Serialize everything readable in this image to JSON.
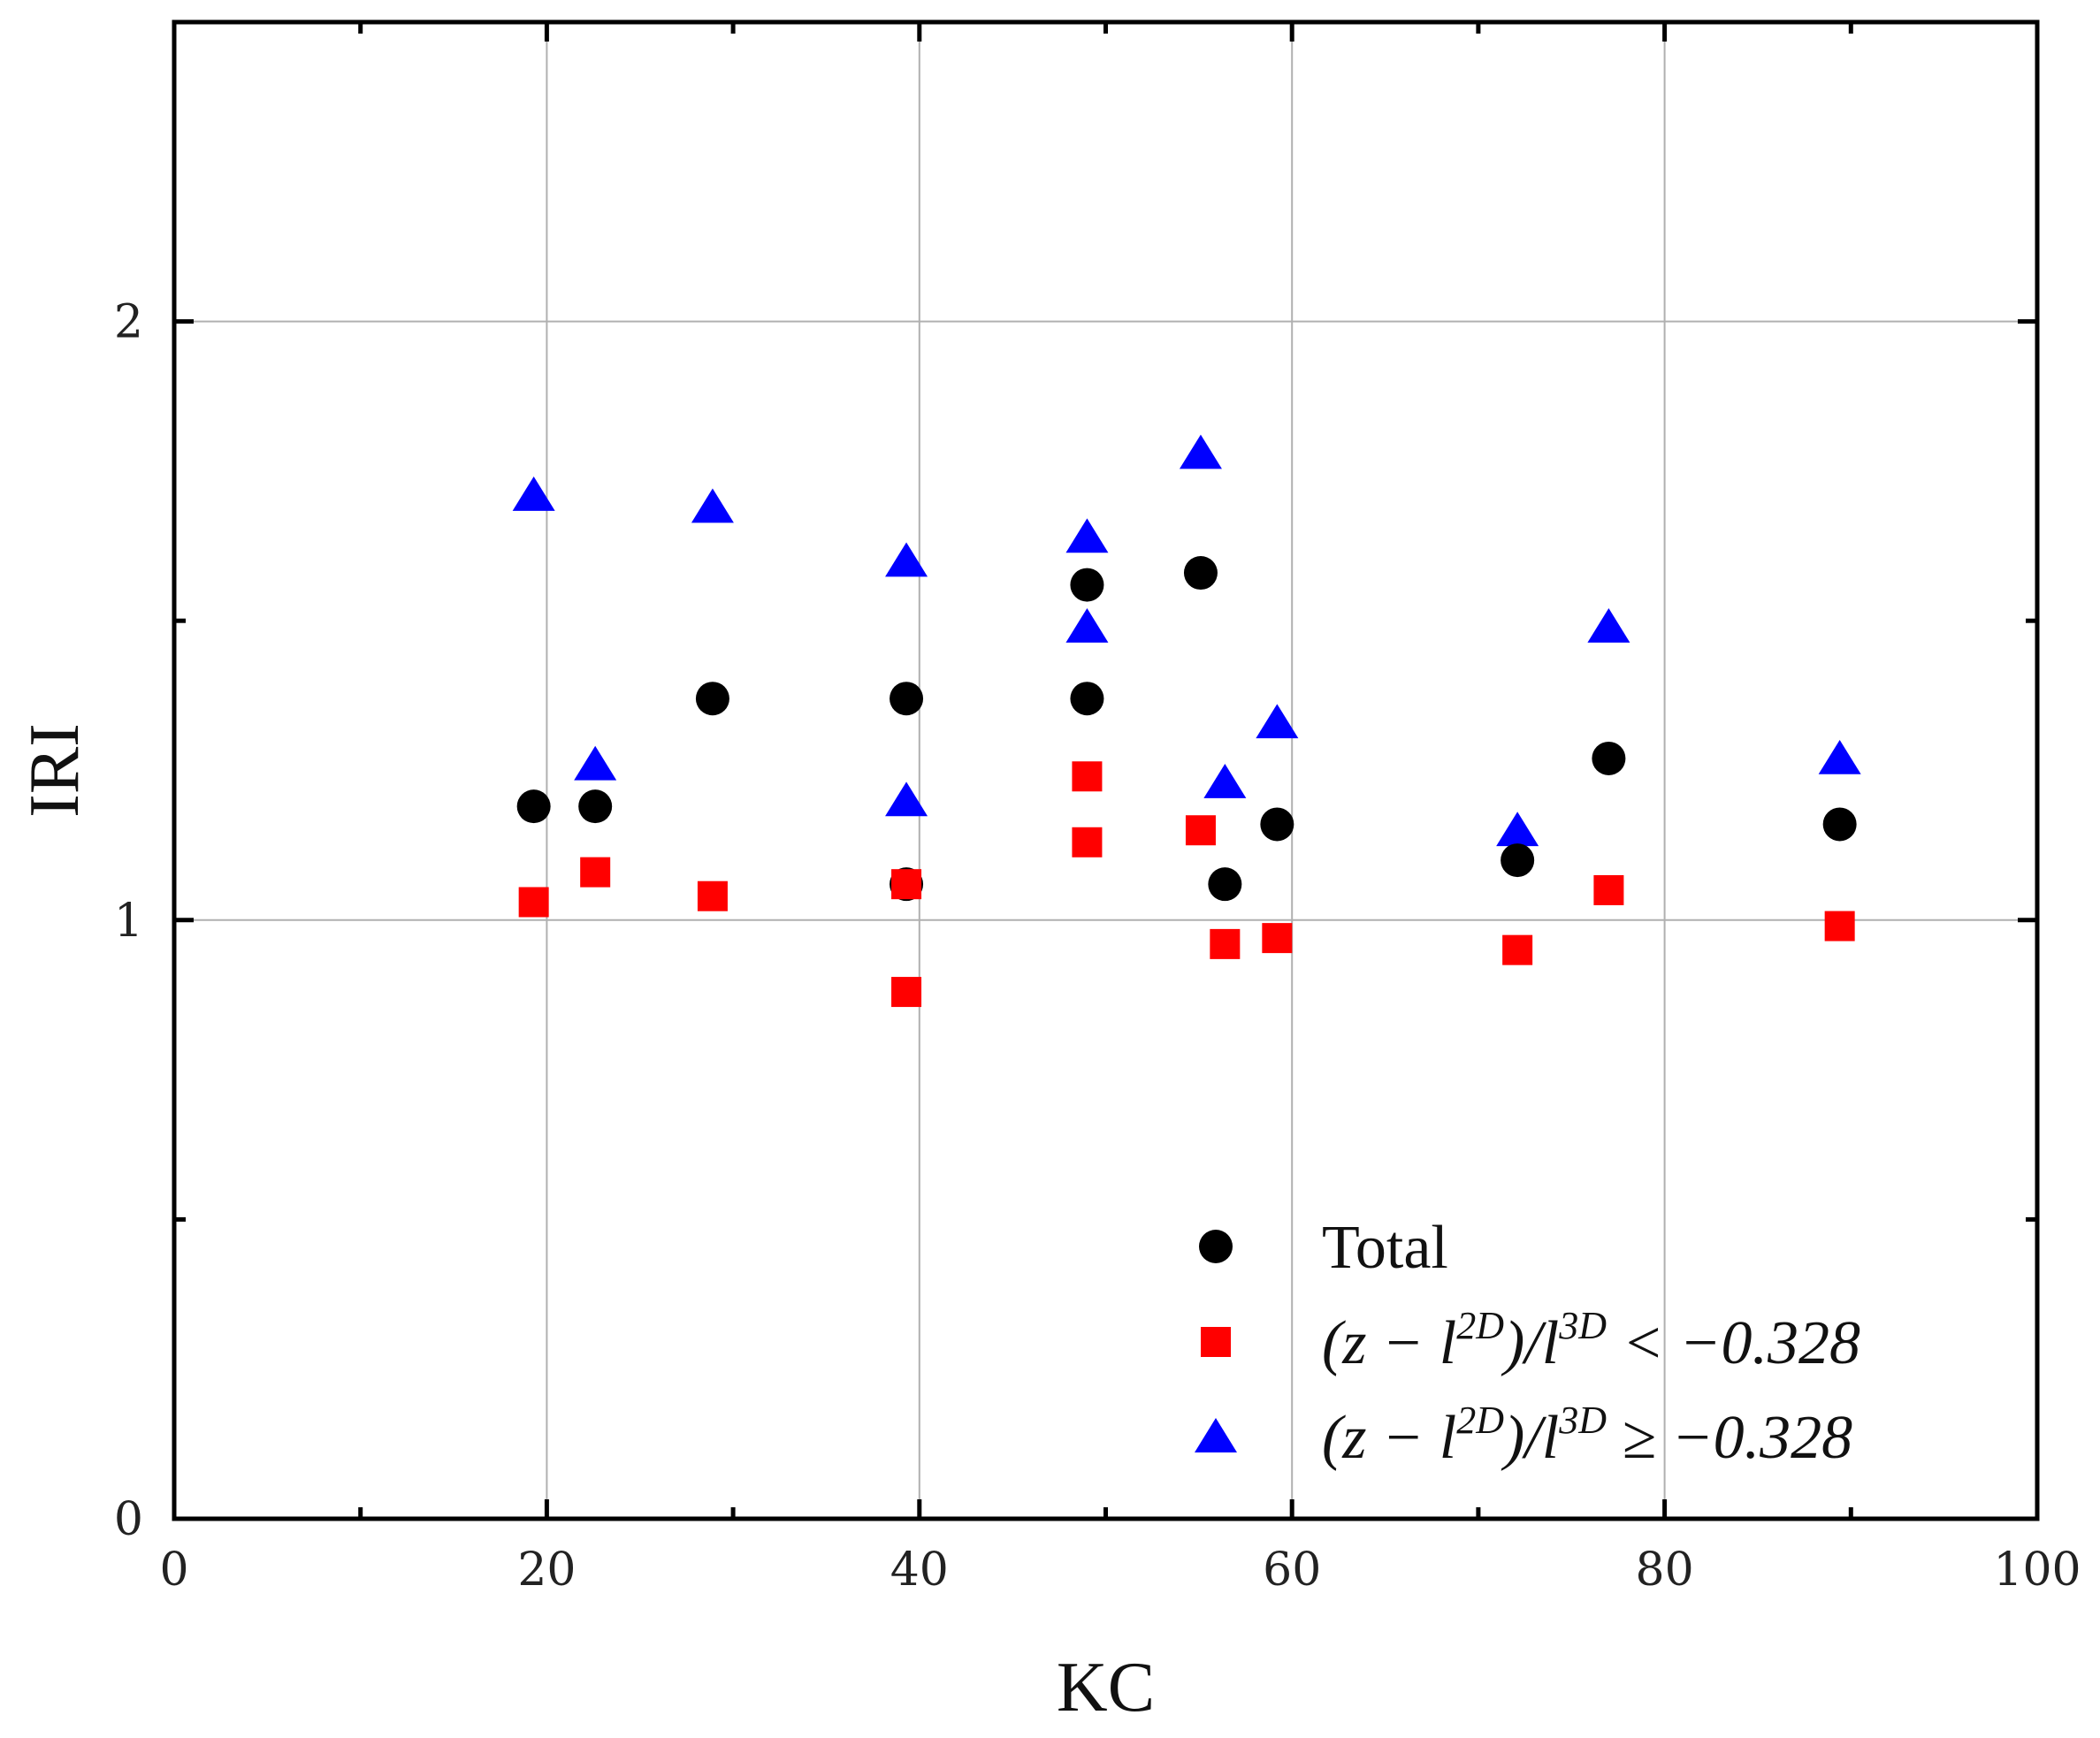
{
  "chart_data": {
    "type": "scatter",
    "title": "",
    "xlabel": "KC",
    "ylabel": "IRI",
    "xlim": [
      0,
      100
    ],
    "ylim": [
      0,
      2.5
    ],
    "xticks": [
      0,
      20,
      40,
      60,
      80,
      100
    ],
    "xtick_labels": [
      "0",
      "20",
      "40",
      "60",
      "80",
      "100"
    ],
    "yticks": [
      0,
      1,
      2
    ],
    "ytick_labels": [
      "0",
      "1",
      "2"
    ],
    "grid": true,
    "legend_position": "bottom-right",
    "series": [
      {
        "name": "Total",
        "marker": "circle",
        "color": "#000000",
        "points": [
          {
            "x": 19.3,
            "y": 1.19
          },
          {
            "x": 22.6,
            "y": 1.19
          },
          {
            "x": 28.9,
            "y": 1.37
          },
          {
            "x": 39.3,
            "y": 1.37
          },
          {
            "x": 39.3,
            "y": 1.06
          },
          {
            "x": 49.0,
            "y": 1.56
          },
          {
            "x": 49.0,
            "y": 1.37
          },
          {
            "x": 55.1,
            "y": 1.58
          },
          {
            "x": 56.4,
            "y": 1.06
          },
          {
            "x": 59.2,
            "y": 1.16
          },
          {
            "x": 72.1,
            "y": 1.1
          },
          {
            "x": 77.0,
            "y": 1.27
          },
          {
            "x": 89.4,
            "y": 1.16
          }
        ]
      },
      {
        "name": "(z − l^2D)/l^3D < −0.328",
        "marker": "square",
        "color": "#ff0000",
        "points": [
          {
            "x": 19.3,
            "y": 1.03
          },
          {
            "x": 22.6,
            "y": 1.08
          },
          {
            "x": 28.9,
            "y": 1.04
          },
          {
            "x": 39.3,
            "y": 1.06
          },
          {
            "x": 39.3,
            "y": 0.88
          },
          {
            "x": 49.0,
            "y": 1.24
          },
          {
            "x": 49.0,
            "y": 1.13
          },
          {
            "x": 55.1,
            "y": 1.15
          },
          {
            "x": 56.4,
            "y": 0.96
          },
          {
            "x": 59.2,
            "y": 0.97
          },
          {
            "x": 72.1,
            "y": 0.95
          },
          {
            "x": 77.0,
            "y": 1.05
          },
          {
            "x": 89.4,
            "y": 0.99
          }
        ]
      },
      {
        "name": "(z − l^2D)/l^3D ≥ −0.328",
        "marker": "triangle",
        "color": "#0000ff",
        "points": [
          {
            "x": 19.3,
            "y": 1.71
          },
          {
            "x": 22.6,
            "y": 1.26
          },
          {
            "x": 28.9,
            "y": 1.69
          },
          {
            "x": 39.3,
            "y": 1.6
          },
          {
            "x": 39.3,
            "y": 1.2
          },
          {
            "x": 49.0,
            "y": 1.64
          },
          {
            "x": 49.0,
            "y": 1.49
          },
          {
            "x": 55.1,
            "y": 1.78
          },
          {
            "x": 56.4,
            "y": 1.23
          },
          {
            "x": 59.2,
            "y": 1.33
          },
          {
            "x": 72.1,
            "y": 1.15
          },
          {
            "x": 77.0,
            "y": 1.49
          },
          {
            "x": 89.4,
            "y": 1.27
          }
        ]
      }
    ],
    "legend": {
      "total": "Total",
      "below": {
        "lhs": "(z − l",
        "sup1": "2D",
        "mid": ")/l",
        "sup2": "3D",
        "rhs": " < −0.328"
      },
      "above": {
        "lhs": "(z − l",
        "sup1": "2D",
        "mid": ")/l",
        "sup2": "3D",
        "rhs": " ≥ −0.328"
      }
    }
  }
}
